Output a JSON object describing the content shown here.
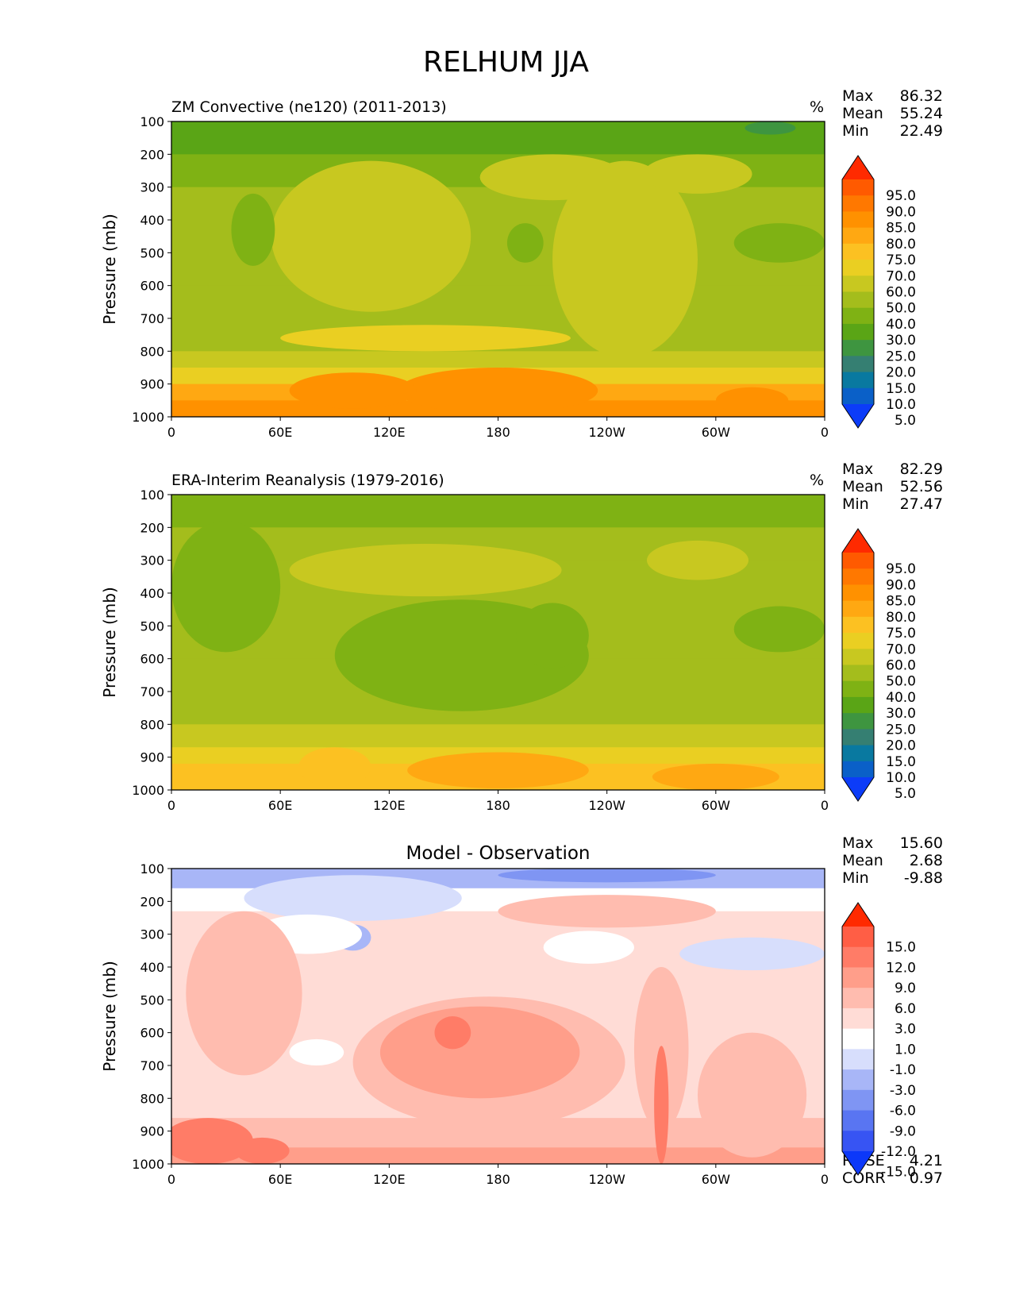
{
  "figure": {
    "title": "RELHUM JJA"
  },
  "chart_data": [
    {
      "type": "heatmap",
      "title": "ZM Convective (ne120) (2011-2013)",
      "units": "%",
      "xlabel": "",
      "ylabel": "Pressure (mb)",
      "x_ticks": [
        "0",
        "60E",
        "120E",
        "180",
        "120W",
        "60W",
        "0"
      ],
      "y_ticks": [
        "100",
        "200",
        "300",
        "400",
        "500",
        "600",
        "700",
        "800",
        "900",
        "1000"
      ],
      "ylim": [
        1000,
        100
      ],
      "stats": [
        {
          "label": "Max",
          "value": "86.32"
        },
        {
          "label": "Mean",
          "value": "55.24"
        },
        {
          "label": "Min",
          "value": "22.49"
        }
      ],
      "colorbar": {
        "levels": [
          "95.0",
          "90.0",
          "85.0",
          "80.0",
          "75.0",
          "70.0",
          "60.0",
          "50.0",
          "40.0",
          "30.0",
          "25.0",
          "20.0",
          "15.0",
          "10.0",
          "5.0"
        ],
        "colors": [
          "#ff2a00",
          "#ff5a00",
          "#ff7800",
          "#ff9100",
          "#ffa812",
          "#fcc122",
          "#eacf22",
          "#c8c820",
          "#a4bd1c",
          "#7fb214",
          "#5aa516",
          "#3e9540",
          "#357f72",
          "#0979a0",
          "#0a60c8",
          "#0c3cf8"
        ]
      },
      "bands": [
        {
          "p": 100,
          "color": "#5aa516"
        },
        {
          "p": 200,
          "color": "#7fb214"
        },
        {
          "p": 300,
          "color": "#a4bd1c"
        },
        {
          "p": 400,
          "color": "#a4bd1c"
        },
        {
          "p": 500,
          "color": "#a4bd1c"
        },
        {
          "p": 600,
          "color": "#a4bd1c"
        },
        {
          "p": 700,
          "color": "#a4bd1c"
        },
        {
          "p": 800,
          "color": "#c8c820"
        },
        {
          "p": 850,
          "color": "#eacf22"
        },
        {
          "p": 900,
          "color": "#ffa812"
        },
        {
          "p": 950,
          "color": "#ff9100"
        }
      ],
      "features": [
        {
          "lon": 210,
          "p": 270,
          "rx": 40,
          "rp": 70,
          "color": "#c8c820"
        },
        {
          "lon": 110,
          "p": 450,
          "rx": 55,
          "rp": 230,
          "color": "#c8c820"
        },
        {
          "lon": 250,
          "p": 520,
          "rx": 40,
          "rp": 300,
          "color": "#c8c820"
        },
        {
          "lon": 290,
          "p": 260,
          "rx": 30,
          "rp": 60,
          "color": "#c8c820"
        },
        {
          "lon": 45,
          "p": 430,
          "rx": 12,
          "rp": 110,
          "color": "#7fb214"
        },
        {
          "lon": 195,
          "p": 470,
          "rx": 10,
          "rp": 60,
          "color": "#7fb214"
        },
        {
          "lon": 335,
          "p": 470,
          "rx": 25,
          "rp": 60,
          "color": "#7fb214"
        },
        {
          "lon": 140,
          "p": 760,
          "rx": 80,
          "rp": 40,
          "color": "#eacf22"
        },
        {
          "lon": 180,
          "p": 920,
          "rx": 55,
          "rp": 70,
          "color": "#ff9100"
        },
        {
          "lon": 100,
          "p": 920,
          "rx": 35,
          "rp": 55,
          "color": "#ff9100"
        },
        {
          "lon": 320,
          "p": 950,
          "rx": 20,
          "rp": 40,
          "color": "#ff9100"
        },
        {
          "lon": 330,
          "p": 120,
          "rx": 14,
          "rp": 20,
          "color": "#3e9540"
        }
      ]
    },
    {
      "type": "heatmap",
      "title": "ERA-Interim Reanalysis (1979-2016)",
      "units": "%",
      "xlabel": "",
      "ylabel": "Pressure (mb)",
      "x_ticks": [
        "0",
        "60E",
        "120E",
        "180",
        "120W",
        "60W",
        "0"
      ],
      "y_ticks": [
        "100",
        "200",
        "300",
        "400",
        "500",
        "600",
        "700",
        "800",
        "900",
        "1000"
      ],
      "ylim": [
        1000,
        100
      ],
      "stats": [
        {
          "label": "Max",
          "value": "82.29"
        },
        {
          "label": "Mean",
          "value": "52.56"
        },
        {
          "label": "Min",
          "value": "27.47"
        }
      ],
      "colorbar": {
        "levels": [
          "95.0",
          "90.0",
          "85.0",
          "80.0",
          "75.0",
          "70.0",
          "60.0",
          "50.0",
          "40.0",
          "30.0",
          "25.0",
          "20.0",
          "15.0",
          "10.0",
          "5.0"
        ],
        "colors": [
          "#ff2a00",
          "#ff5a00",
          "#ff7800",
          "#ff9100",
          "#ffa812",
          "#fcc122",
          "#eacf22",
          "#c8c820",
          "#a4bd1c",
          "#7fb214",
          "#5aa516",
          "#3e9540",
          "#357f72",
          "#0979a0",
          "#0a60c8",
          "#0c3cf8"
        ]
      },
      "bands": [
        {
          "p": 100,
          "color": "#7fb214"
        },
        {
          "p": 200,
          "color": "#a4bd1c"
        },
        {
          "p": 300,
          "color": "#a4bd1c"
        },
        {
          "p": 400,
          "color": "#a4bd1c"
        },
        {
          "p": 500,
          "color": "#a4bd1c"
        },
        {
          "p": 600,
          "color": "#a4bd1c"
        },
        {
          "p": 700,
          "color": "#a4bd1c"
        },
        {
          "p": 800,
          "color": "#c8c820"
        },
        {
          "p": 870,
          "color": "#eacf22"
        },
        {
          "p": 920,
          "color": "#fcc122"
        }
      ],
      "features": [
        {
          "lon": 30,
          "p": 380,
          "rx": 30,
          "rp": 200,
          "color": "#7fb214"
        },
        {
          "lon": 160,
          "p": 590,
          "rx": 70,
          "rp": 170,
          "color": "#7fb214"
        },
        {
          "lon": 210,
          "p": 530,
          "rx": 20,
          "rp": 100,
          "color": "#7fb214"
        },
        {
          "lon": 335,
          "p": 510,
          "rx": 25,
          "rp": 70,
          "color": "#7fb214"
        },
        {
          "lon": 140,
          "p": 330,
          "rx": 75,
          "rp": 80,
          "color": "#c8c820"
        },
        {
          "lon": 290,
          "p": 300,
          "rx": 28,
          "rp": 60,
          "color": "#c8c820"
        },
        {
          "lon": 180,
          "p": 940,
          "rx": 50,
          "rp": 55,
          "color": "#ffa812"
        },
        {
          "lon": 300,
          "p": 960,
          "rx": 35,
          "rp": 40,
          "color": "#ffa812"
        },
        {
          "lon": 90,
          "p": 930,
          "rx": 20,
          "rp": 60,
          "color": "#fcc122"
        }
      ]
    },
    {
      "type": "heatmap",
      "title": "Model - Observation",
      "units": "",
      "xlabel": "",
      "ylabel": "Pressure (mb)",
      "x_ticks": [
        "0",
        "60E",
        "120E",
        "180",
        "120W",
        "60W",
        "0"
      ],
      "y_ticks": [
        "100",
        "200",
        "300",
        "400",
        "500",
        "600",
        "700",
        "800",
        "900",
        "1000"
      ],
      "ylim": [
        1000,
        100
      ],
      "stats": [
        {
          "label": "Max",
          "value": "15.60"
        },
        {
          "label": "Mean",
          "value": "2.68"
        },
        {
          "label": "Min",
          "value": "-9.88"
        }
      ],
      "extra_stats": [
        {
          "label": "RMSE",
          "value": "4.21"
        },
        {
          "label": "CORR",
          "value": "0.97"
        }
      ],
      "colorbar": {
        "levels": [
          "15.0",
          "12.0",
          "9.0",
          "6.0",
          "3.0",
          "1.0",
          "-1.0",
          "-3.0",
          "-6.0",
          "-9.0",
          "-12.0",
          "-15.0"
        ],
        "colors": [
          "#ff2a00",
          "#ff5e45",
          "#ff7c67",
          "#ff9e8a",
          "#ffbcaf",
          "#ffdcd6",
          "#ffffff",
          "#d7defc",
          "#a8b6f7",
          "#7f95f3",
          "#5975f2",
          "#3754f3",
          "#0c38f9"
        ]
      },
      "bands": [
        {
          "p": 100,
          "color": "#a8b6f7"
        },
        {
          "p": 160,
          "color": "#ffffff"
        },
        {
          "p": 230,
          "color": "#ffdcd6"
        },
        {
          "p": 400,
          "color": "#ffdcd6"
        },
        {
          "p": 600,
          "color": "#ffdcd6"
        },
        {
          "p": 750,
          "color": "#ffdcd6"
        },
        {
          "p": 860,
          "color": "#ffbcaf"
        },
        {
          "p": 950,
          "color": "#ff9e8a"
        }
      ],
      "features": [
        {
          "lon": 240,
          "p": 120,
          "rx": 60,
          "rp": 22,
          "color": "#7f95f3"
        },
        {
          "lon": 100,
          "p": 190,
          "rx": 60,
          "rp": 70,
          "color": "#d7defc"
        },
        {
          "lon": 100,
          "p": 310,
          "rx": 10,
          "rp": 40,
          "color": "#a8b6f7"
        },
        {
          "lon": 320,
          "p": 360,
          "rx": 40,
          "rp": 50,
          "color": "#d7defc"
        },
        {
          "lon": 240,
          "p": 230,
          "rx": 60,
          "rp": 50,
          "color": "#ffbcaf"
        },
        {
          "lon": 75,
          "p": 300,
          "rx": 30,
          "rp": 60,
          "color": "#ffffff"
        },
        {
          "lon": 230,
          "p": 340,
          "rx": 25,
          "rp": 50,
          "color": "#ffffff"
        },
        {
          "lon": 40,
          "p": 480,
          "rx": 32,
          "rp": 250,
          "color": "#ffbcaf"
        },
        {
          "lon": 175,
          "p": 690,
          "rx": 75,
          "rp": 200,
          "color": "#ffbcaf"
        },
        {
          "lon": 170,
          "p": 660,
          "rx": 55,
          "rp": 140,
          "color": "#ff9e8a"
        },
        {
          "lon": 155,
          "p": 600,
          "rx": 10,
          "rp": 50,
          "color": "#ff7c67"
        },
        {
          "lon": 270,
          "p": 650,
          "rx": 15,
          "rp": 250,
          "color": "#ffbcaf"
        },
        {
          "lon": 320,
          "p": 790,
          "rx": 30,
          "rp": 190,
          "color": "#ffbcaf"
        },
        {
          "lon": 20,
          "p": 930,
          "rx": 25,
          "rp": 70,
          "color": "#ff7c67"
        },
        {
          "lon": 50,
          "p": 960,
          "rx": 15,
          "rp": 40,
          "color": "#ff7c67"
        },
        {
          "lon": 80,
          "p": 660,
          "rx": 15,
          "rp": 40,
          "color": "#ffffff"
        },
        {
          "lon": 270,
          "p": 820,
          "rx": 4,
          "rp": 180,
          "color": "#ff7c67"
        }
      ]
    }
  ]
}
